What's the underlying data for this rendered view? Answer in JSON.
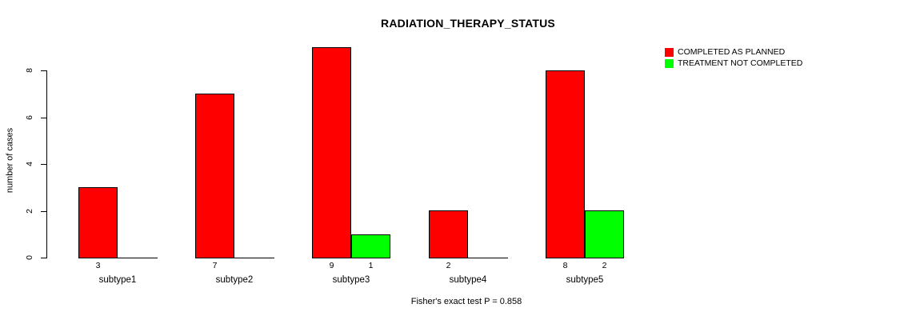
{
  "chart_data": {
    "type": "bar",
    "title": "RADIATION_THERAPY_STATUS",
    "ylabel": "number of cases",
    "xlabel": "",
    "categories": [
      "subtype1",
      "subtype2",
      "subtype3",
      "subtype4",
      "subtype5"
    ],
    "series": [
      {
        "name": "COMPLETED AS PLANNED",
        "color": "#ff0000",
        "values": [
          3,
          7,
          9,
          2,
          8
        ]
      },
      {
        "name": "TREATMENT NOT COMPLETED",
        "color": "#00ff00",
        "values": [
          0,
          0,
          1,
          0,
          2
        ]
      }
    ],
    "value_labels_shown_when_nonzero": true,
    "yticks": [
      0,
      2,
      4,
      6,
      8
    ],
    "ylim": [
      0,
      9
    ],
    "grid": false,
    "legend_position": "top-right",
    "annotation": "Fisher's exact test P = 0.858"
  },
  "colors": {
    "axis": "#000000",
    "text": "#000000",
    "background": "#ffffff"
  }
}
